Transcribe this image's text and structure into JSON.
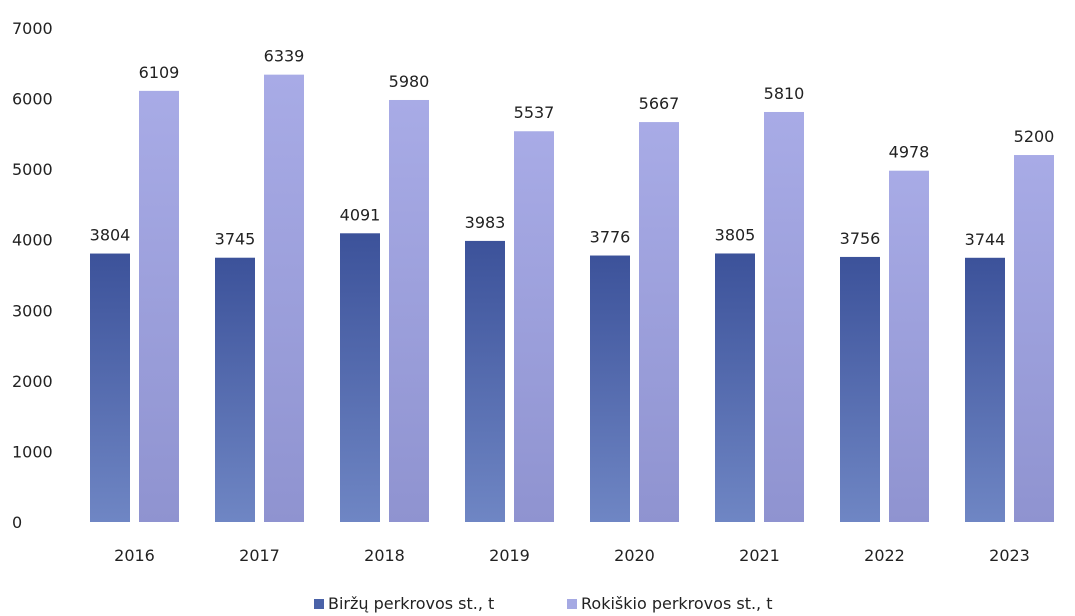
{
  "chart_data": {
    "type": "bar",
    "title": "",
    "xlabel": "",
    "ylabel": "",
    "categories": [
      "2016",
      "2017",
      "2018",
      "2019",
      "2020",
      "2021",
      "2022",
      "2023"
    ],
    "ylim": [
      0,
      7000
    ],
    "yticks": [
      "0",
      "1000",
      "2000",
      "3000",
      "4000",
      "5000",
      "6000",
      "7000"
    ],
    "grid": false,
    "legend_position": "bottom",
    "series": [
      {
        "name": "Biržų perkrovos st., t",
        "values": [
          3804,
          3745,
          4091,
          3983,
          3776,
          3805,
          3756,
          3744
        ],
        "color": "#4a62a8",
        "color_dark": "#3c529a",
        "color_light": "#6f86c4"
      },
      {
        "name": "Rokiškio perkrovos st., t",
        "values": [
          6109,
          6339,
          5980,
          5537,
          5667,
          5810,
          4978,
          5200
        ],
        "color": "#a5a9e3",
        "color_dark": "#9498d6",
        "color_light": "#c3c6f0"
      }
    ]
  }
}
